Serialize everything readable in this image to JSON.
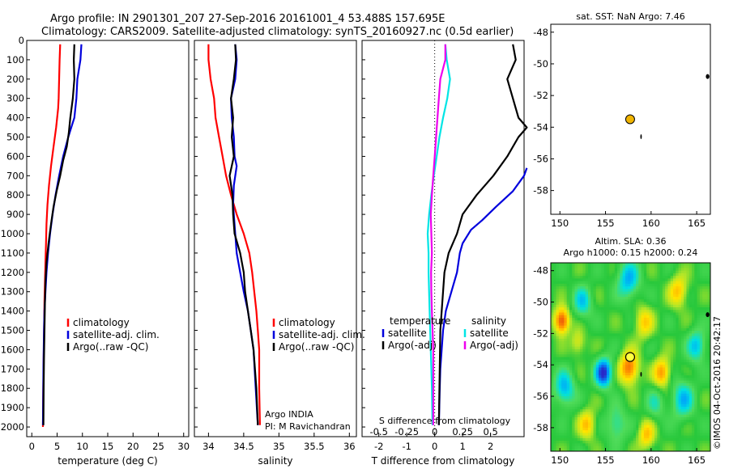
{
  "header": {
    "title_line1": "Argo profile: IN 2901301_207 27-Sep-2016 20161001_4 53.488S 157.695E",
    "title_line2": "Climatology: CARS2009. Satellite-adjusted climatology: synTS_20160927.nc (0.5d earlier)"
  },
  "colors": {
    "climatology": "#ff0000",
    "satellite": "#0000dd",
    "argo": "#000000",
    "sal_satellite": "#00e5e5",
    "sal_argo": "#ee00ee",
    "marker_fill": "#f0b400"
  },
  "chart_data": [
    {
      "id": "temperature",
      "type": "line",
      "xlabel": "temperature (deg C)",
      "xlim": [
        -1,
        31
      ],
      "xticks": [
        0,
        5,
        10,
        15,
        20,
        25,
        30
      ],
      "ylim": [
        2050,
        0
      ],
      "yticks": [
        0,
        100,
        200,
        300,
        400,
        500,
        600,
        700,
        800,
        900,
        1000,
        1100,
        1200,
        1300,
        1400,
        1500,
        1600,
        1700,
        1800,
        1900,
        2000
      ],
      "legend": [
        "climatology",
        "satellite-adj. clim.",
        "Argo(..raw -QC)"
      ],
      "series": [
        {
          "name": "climatology",
          "color": "#ff0000",
          "x": [
            5.6,
            5.5,
            5.4,
            5.3,
            5.2,
            4.8,
            4.3,
            3.8,
            3.4,
            3.1,
            2.9,
            2.8,
            2.7,
            2.6,
            2.5,
            2.45,
            2.4,
            2.35,
            2.3,
            2.25,
            2.2
          ],
          "y": [
            20,
            100,
            200,
            300,
            350,
            450,
            550,
            650,
            750,
            850,
            950,
            1050,
            1150,
            1250,
            1350,
            1450,
            1550,
            1650,
            1750,
            1850,
            2000
          ]
        },
        {
          "name": "satellite-adj. clim.",
          "color": "#0000dd",
          "x": [
            9.8,
            9.6,
            9.0,
            8.8,
            8.4,
            7.8,
            7.2,
            6.2,
            5.4,
            4.7,
            4.1,
            3.6,
            3.2,
            2.9,
            2.7,
            2.5,
            2.4,
            2.3,
            2.25,
            2.2
          ],
          "y": [
            20,
            100,
            200,
            300,
            400,
            450,
            500,
            600,
            700,
            800,
            900,
            1000,
            1100,
            1200,
            1300,
            1400,
            1500,
            1700,
            1850,
            1990
          ]
        },
        {
          "name": "Argo(..raw -QC)",
          "color": "#000000",
          "x": [
            8.4,
            8.3,
            8.4,
            8.1,
            7.6,
            7.3,
            6.9,
            6.2,
            5.6,
            4.9,
            4.3,
            3.8,
            3.3,
            2.9,
            2.7,
            2.6,
            2.5,
            2.4,
            2.35,
            2.3
          ],
          "y": [
            20,
            100,
            200,
            300,
            400,
            480,
            550,
            620,
            700,
            780,
            860,
            950,
            1050,
            1150,
            1250,
            1350,
            1500,
            1650,
            1800,
            1990
          ]
        }
      ]
    },
    {
      "id": "salinity",
      "type": "line",
      "xlabel": "salinity",
      "xlim": [
        33.8,
        36.1
      ],
      "xticks": [
        34,
        34.5,
        35,
        35.5,
        36
      ],
      "xticklabels": [
        "34",
        "34.5",
        "35",
        "35.5",
        "36"
      ],
      "ylim": [
        2050,
        0
      ],
      "legend": [
        "climatology",
        "satellite-adj. clim.",
        "Argo(..raw -QC)"
      ],
      "annotation": [
        "Argo INDIA",
        "PI: M Ravichandran"
      ],
      "series": [
        {
          "name": "climatology",
          "color": "#ff0000",
          "x": [
            34.0,
            34.0,
            34.03,
            34.08,
            34.1,
            34.15,
            34.2,
            34.25,
            34.32,
            34.4,
            34.5,
            34.58,
            34.62,
            34.65,
            34.68,
            34.7,
            34.72,
            34.72,
            34.73
          ],
          "y": [
            20,
            100,
            200,
            300,
            400,
            500,
            600,
            700,
            800,
            900,
            1000,
            1100,
            1200,
            1300,
            1400,
            1500,
            1600,
            1800,
            1990
          ]
        },
        {
          "name": "satellite-adj. clim.",
          "color": "#0000dd",
          "x": [
            34.38,
            34.4,
            34.38,
            34.32,
            34.33,
            34.36,
            34.37,
            34.4,
            34.36,
            34.35,
            34.38,
            34.4,
            34.45,
            34.5,
            34.56,
            34.6,
            34.64,
            34.67,
            34.7
          ],
          "y": [
            20,
            100,
            200,
            300,
            400,
            500,
            600,
            650,
            750,
            850,
            1000,
            1100,
            1200,
            1300,
            1400,
            1500,
            1600,
            1800,
            1990
          ]
        },
        {
          "name": "Argo(..raw -QC)",
          "color": "#000000",
          "x": [
            34.38,
            34.39,
            34.36,
            34.32,
            34.35,
            34.33,
            34.36,
            34.3,
            34.34,
            34.35,
            34.37,
            34.45,
            34.5,
            34.52,
            34.56,
            34.6,
            34.64,
            34.68,
            34.7
          ],
          "y": [
            20,
            100,
            200,
            300,
            400,
            500,
            600,
            700,
            800,
            900,
            1000,
            1100,
            1200,
            1300,
            1400,
            1500,
            1600,
            1800,
            1990
          ]
        }
      ]
    },
    {
      "id": "difference",
      "type": "line",
      "xlabel": "T difference from climatology",
      "xlabel2": "S difference from climatology",
      "xlim": [
        -2.6,
        3.2
      ],
      "xticks": [
        -2,
        -1,
        0,
        1,
        2
      ],
      "xticks_s": [
        -0.5,
        -0.25,
        0,
        0.25,
        0.5
      ],
      "xticks_s_labels": [
        "-0.5",
        "-0.25",
        "0",
        "0.25",
        "0.5"
      ],
      "ylim": [
        2050,
        0
      ],
      "legend_temperature": {
        "heading": "temperature",
        "items": [
          "satellite",
          "Argo(-adj)"
        ]
      },
      "legend_salinity": {
        "heading": "salinity",
        "items": [
          "satellite",
          "Argo(-adj)"
        ]
      },
      "series": [
        {
          "name": "temperature satellite",
          "color": "#0000dd",
          "x": [
            3.3,
            3.2,
            2.8,
            2.2,
            1.7,
            1.3,
            1.0,
            0.9,
            0.8,
            0.6,
            0.4,
            0.3,
            0.25,
            0.2,
            0.18,
            0.15
          ],
          "y": [
            660,
            700,
            780,
            860,
            930,
            980,
            1050,
            1100,
            1200,
            1300,
            1400,
            1500,
            1600,
            1700,
            1800,
            1990
          ]
        },
        {
          "name": "temperature Argo(-adj)",
          "color": "#000000",
          "x": [
            2.8,
            2.9,
            2.6,
            2.8,
            3.0,
            3.3,
            3.0,
            2.6,
            2.1,
            1.5,
            1.0,
            0.8,
            0.5,
            0.35,
            0.3,
            0.2,
            0.15
          ],
          "y": [
            20,
            100,
            200,
            300,
            400,
            450,
            500,
            600,
            700,
            800,
            900,
            1000,
            1100,
            1200,
            1300,
            1500,
            1990
          ]
        },
        {
          "name": "salinity satellite",
          "color": "#00e5e5",
          "x": [
            0.38,
            0.43,
            0.55,
            0.45,
            0.3,
            0.17,
            0.07,
            -0.03,
            -0.12,
            -0.2,
            -0.25,
            -0.22,
            -0.22,
            -0.18,
            -0.14,
            -0.1,
            -0.08
          ],
          "y": [
            20,
            100,
            200,
            300,
            400,
            500,
            600,
            700,
            800,
            900,
            1000,
            1100,
            1200,
            1400,
            1600,
            1800,
            1990
          ]
        },
        {
          "name": "salinity Argo(-adj)",
          "color": "#ee00ee",
          "x": [
            0.38,
            0.38,
            0.2,
            0.15,
            0.1,
            0.05,
            0.0,
            -0.05,
            -0.1,
            -0.14,
            -0.12,
            -0.1,
            -0.13,
            -0.12,
            -0.1,
            -0.05,
            -0.05
          ],
          "y": [
            20,
            100,
            200,
            300,
            400,
            500,
            600,
            700,
            800,
            900,
            1000,
            1100,
            1200,
            1300,
            1400,
            1600,
            1990
          ]
        }
      ]
    },
    {
      "id": "sst_map",
      "type": "scatter",
      "title": "sat. SST: NaN Argo: 7.46",
      "xlim": [
        149,
        166.5
      ],
      "ylim": [
        -59.5,
        -47.5
      ],
      "xticks": [
        150,
        155,
        160,
        165
      ],
      "yticks": [
        -48,
        -50,
        -52,
        -54,
        -56,
        -58
      ],
      "points": [
        {
          "x": 157.7,
          "y": -53.5
        }
      ]
    },
    {
      "id": "sla_map",
      "type": "heatmap",
      "title_line1": "Altim. SLA: 0.36",
      "title_line2": "Argo h1000: 0.15 h2000: 0.24",
      "xlim": [
        149,
        166.5
      ],
      "ylim": [
        -59.5,
        -47.5
      ],
      "xticks": [
        150,
        155,
        160,
        165
      ],
      "yticks": [
        -48,
        -50,
        -52,
        -54,
        -56,
        -58
      ],
      "points": [
        {
          "x": 157.7,
          "y": -53.5
        }
      ],
      "watermark": "©IMOS 04-Oct-2016 20:42:17"
    }
  ]
}
